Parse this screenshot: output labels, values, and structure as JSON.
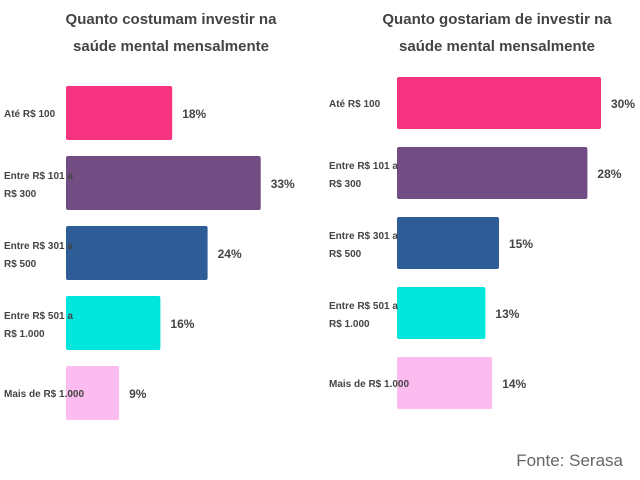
{
  "chart_data": [
    {
      "type": "bar",
      "orientation": "horizontal",
      "title": [
        "Quanto costumam investir na",
        "saúde mental mensalmente"
      ],
      "categories": [
        [
          "Até R$ 100"
        ],
        [
          "Entre R$ 101 a",
          "R$ 300"
        ],
        [
          "Entre R$ 301 a",
          "R$ 500"
        ],
        [
          "Entre R$ 501 a",
          "R$ 1.000"
        ],
        [
          "Mais de R$ 1.000"
        ]
      ],
      "values": [
        18,
        33,
        24,
        16,
        9
      ],
      "labels": [
        "18%",
        "33%",
        "24%",
        "16%",
        "9%"
      ],
      "colors": [
        "#f5337f",
        "#724d84",
        "#2e5c96",
        "#00e6dc",
        "#fdbcf0"
      ],
      "xlabel": "",
      "ylabel": "",
      "unit": "%"
    },
    {
      "type": "bar",
      "orientation": "horizontal",
      "title": [
        "Quanto gostariam de investir na",
        "saúde mental mensalmente"
      ],
      "categories": [
        [
          "Até R$ 100"
        ],
        [
          "Entre R$ 101 a",
          "R$ 300"
        ],
        [
          "Entre R$ 301 a",
          "R$ 500"
        ],
        [
          "Entre R$ 501 a",
          "R$ 1.000"
        ],
        [
          "Mais de R$ 1.000"
        ]
      ],
      "values": [
        30,
        28,
        15,
        13,
        14
      ],
      "labels": [
        "30%",
        "28%",
        "15%",
        "13%",
        "14%"
      ],
      "colors": [
        "#f5337f",
        "#724d84",
        "#2e5c96",
        "#00e6dc",
        "#fdbcf0"
      ],
      "xlabel": "",
      "ylabel": "",
      "unit": "%"
    }
  ],
  "source": "Fonte: Serasa"
}
